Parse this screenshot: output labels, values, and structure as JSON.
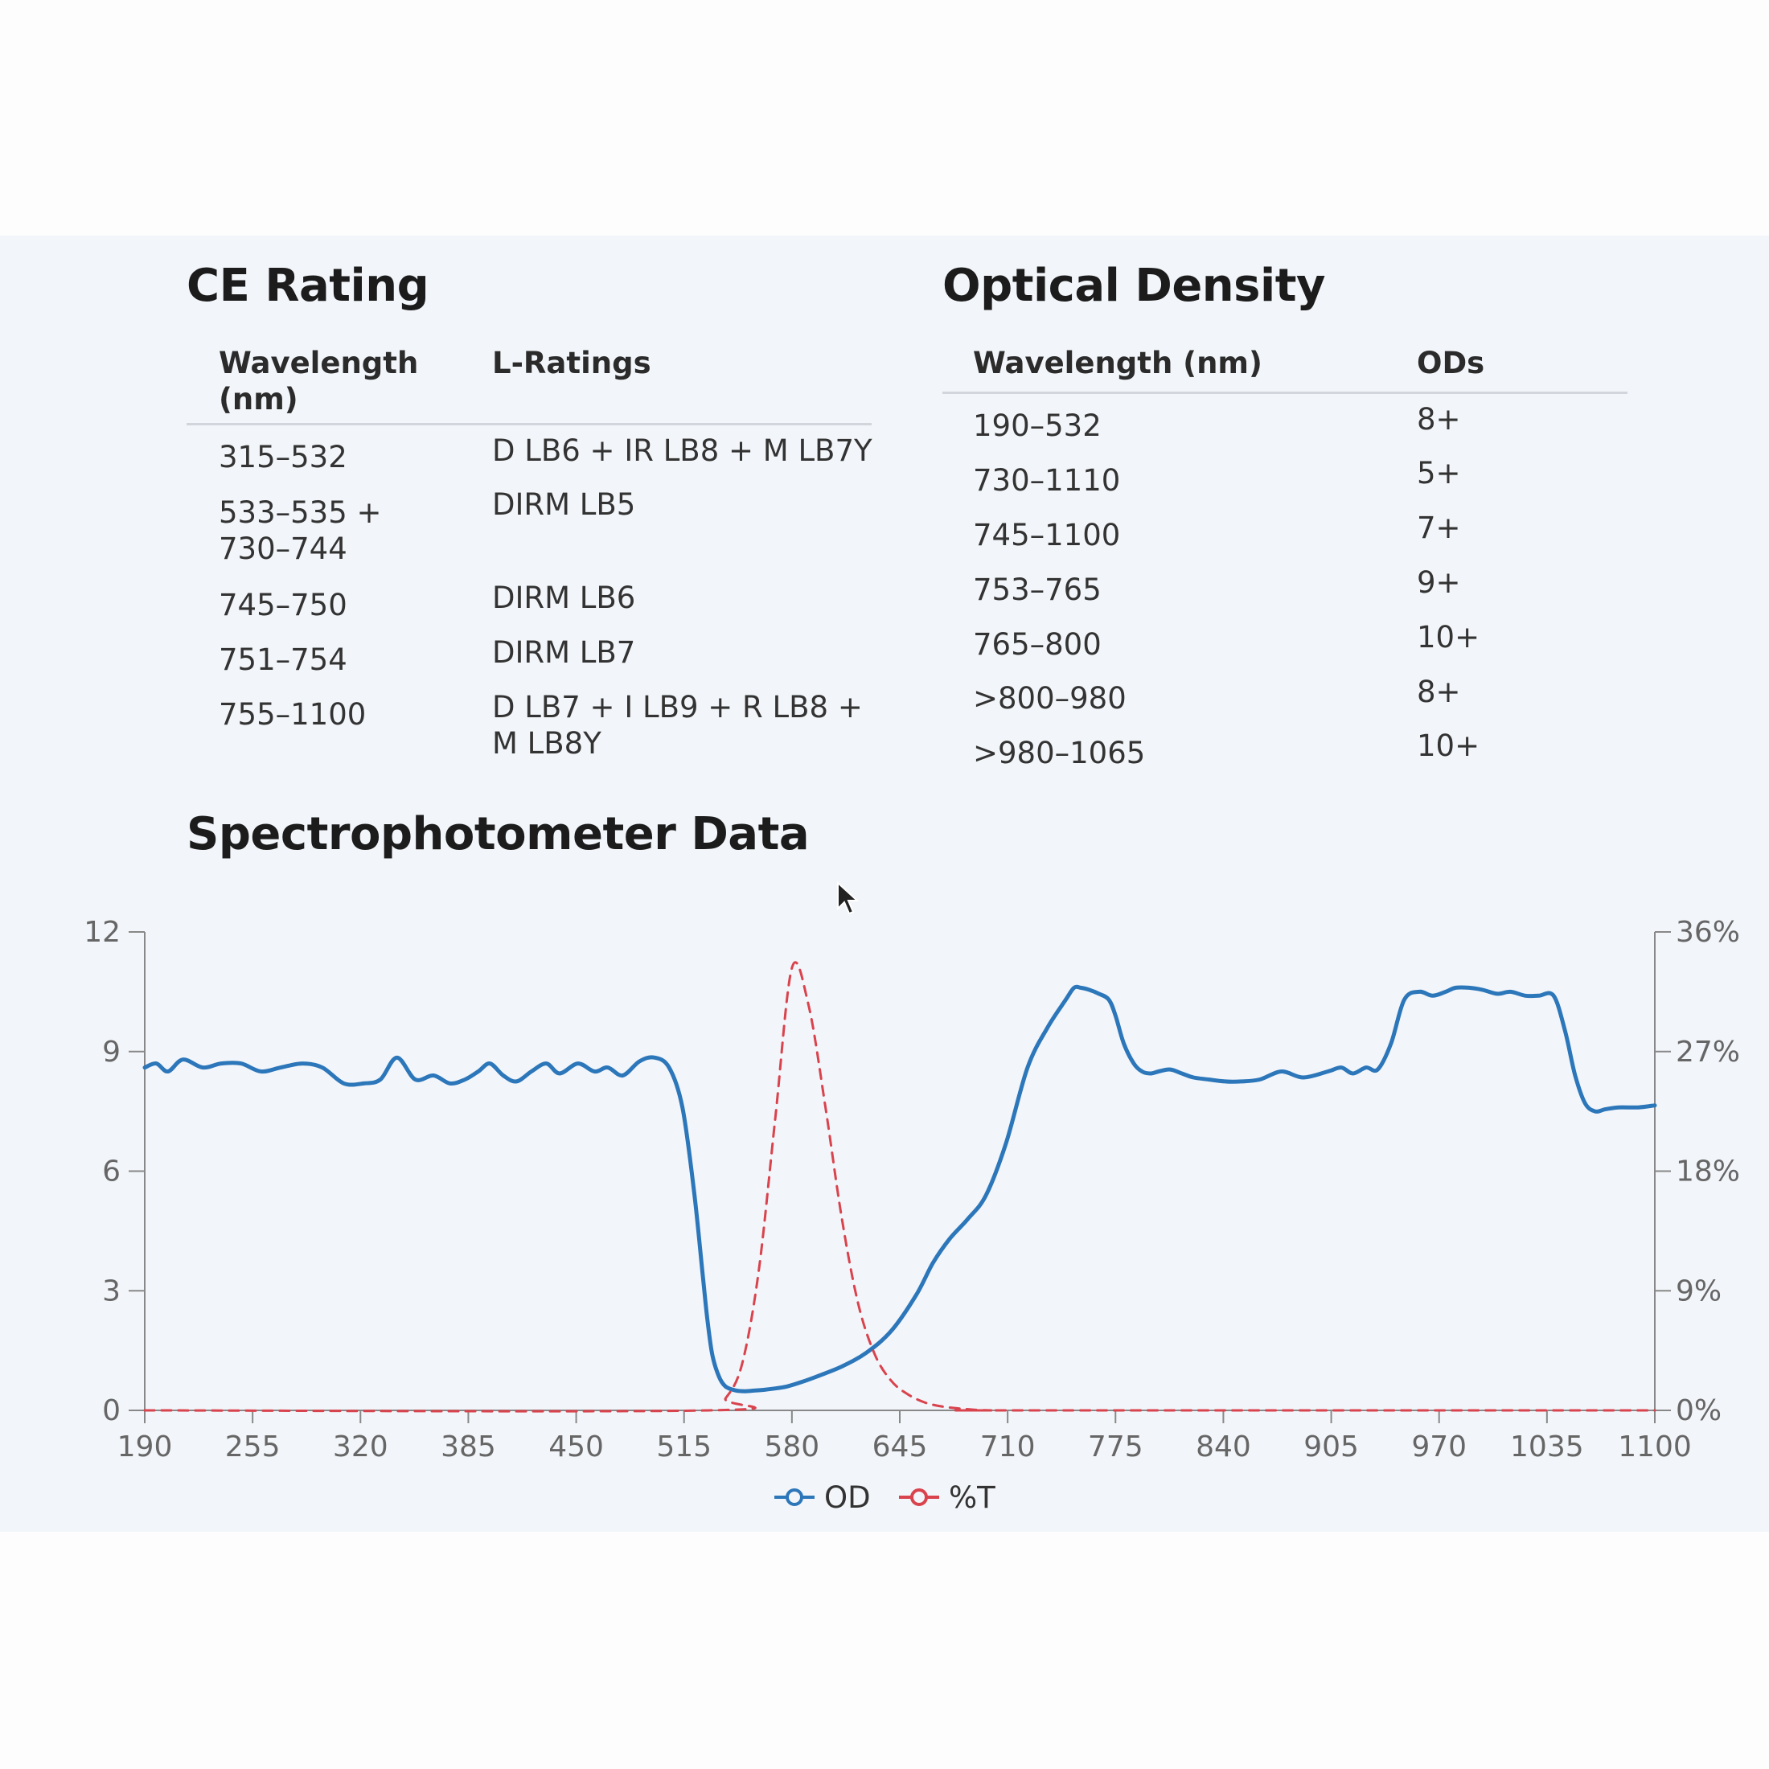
{
  "ce_rating": {
    "title": "CE Rating",
    "headers": {
      "wavelength": [
        "Wavelength",
        "(nm)"
      ],
      "ratings": "L-Ratings"
    },
    "rows": [
      {
        "wavelength": [
          "315–532"
        ],
        "rating": [
          "D LB6 + IR LB8 + M LB7Y"
        ]
      },
      {
        "wavelength": [
          "533–535 +",
          "730–744"
        ],
        "rating": [
          "DIRM LB5"
        ]
      },
      {
        "wavelength": [
          "745–750"
        ],
        "rating": [
          "DIRM LB6"
        ]
      },
      {
        "wavelength": [
          "751–754"
        ],
        "rating": [
          "DIRM LB7"
        ]
      },
      {
        "wavelength": [
          "755–1100"
        ],
        "rating": [
          "D LB7 + I LB9 + R LB8 +",
          "M LB8Y"
        ]
      }
    ]
  },
  "optical_density": {
    "title": "Optical Density",
    "headers": {
      "wavelength": "Wavelength (nm)",
      "ods": "ODs"
    },
    "rows": [
      {
        "wavelength": "190–532",
        "od": "8+"
      },
      {
        "wavelength": "730–1110",
        "od": "5+"
      },
      {
        "wavelength": "745–1100",
        "od": "7+"
      },
      {
        "wavelength": "753–765",
        "od": "9+"
      },
      {
        "wavelength": "765–800",
        "od": "10+"
      },
      {
        "wavelength": ">800–980",
        "od": "8+"
      },
      {
        "wavelength": ">980–1065",
        "od": "10+"
      }
    ]
  },
  "spectro": {
    "title": "Spectrophotometer Data"
  },
  "chart_data": {
    "type": "line",
    "title": "Spectrophotometer Data",
    "x_ticks": [
      190,
      255,
      320,
      385,
      450,
      515,
      580,
      645,
      710,
      775,
      840,
      905,
      970,
      1035,
      1100
    ],
    "xlim": [
      190,
      1100
    ],
    "y_left_ticks": [
      0,
      3,
      6,
      9,
      12
    ],
    "ylim_left": [
      0,
      12
    ],
    "y_right_ticks": [
      "0%",
      "9%",
      "18%",
      "27%",
      "36%"
    ],
    "ylim_right": [
      0,
      36
    ],
    "legend": {
      "placement": "bottom-center"
    },
    "grid": false,
    "series": [
      {
        "name": "OD",
        "axis": "left",
        "color": "#2c76ba",
        "style": "solid",
        "x": [
          190,
          197,
          204,
          213,
          225,
          236,
          248,
          260,
          272,
          285,
          297,
          310,
          322,
          332,
          342,
          353,
          364,
          374,
          383,
          391,
          398,
          406,
          414,
          423,
          432,
          440,
          451,
          461,
          469,
          478,
          488,
          497,
          506,
          514,
          521,
          526,
          529,
          532,
          536,
          540,
          546,
          552,
          558,
          564,
          570,
          577,
          585,
          595,
          610,
          625,
          640,
          655,
          665,
          675,
          686,
          697,
          709,
          722,
          734,
          745,
          750,
          754,
          759,
          765,
          771,
          775,
          780,
          786,
          791,
          796,
          801,
          808,
          815,
          822,
          831,
          841,
          851,
          862,
          875,
          888,
          903,
          911,
          918,
          926,
          933,
          941,
          949,
          958,
          966,
          974,
          980,
          988,
          996,
          1005,
          1013,
          1022,
          1030,
          1039,
          1046,
          1052,
          1058,
          1064,
          1070,
          1078,
          1090,
          1100
        ],
        "y": [
          8.6,
          8.7,
          8.5,
          8.8,
          8.6,
          8.7,
          8.7,
          8.5,
          8.6,
          8.7,
          8.6,
          8.2,
          8.2,
          8.3,
          8.85,
          8.3,
          8.4,
          8.2,
          8.3,
          8.5,
          8.7,
          8.4,
          8.25,
          8.5,
          8.7,
          8.45,
          8.7,
          8.5,
          8.6,
          8.4,
          8.75,
          8.85,
          8.6,
          7.6,
          5.5,
          3.5,
          2.3,
          1.4,
          0.85,
          0.6,
          0.5,
          0.48,
          0.5,
          0.52,
          0.55,
          0.6,
          0.7,
          0.85,
          1.1,
          1.45,
          2.0,
          2.9,
          3.7,
          4.3,
          4.8,
          5.4,
          6.7,
          8.6,
          9.6,
          10.3,
          10.6,
          10.6,
          10.55,
          10.45,
          10.3,
          9.9,
          9.2,
          8.7,
          8.5,
          8.45,
          8.5,
          8.55,
          8.45,
          8.35,
          8.3,
          8.25,
          8.25,
          8.3,
          8.5,
          8.35,
          8.5,
          8.6,
          8.45,
          8.6,
          8.55,
          9.2,
          10.3,
          10.5,
          10.4,
          10.5,
          10.6,
          10.6,
          10.55,
          10.45,
          10.5,
          10.4,
          10.4,
          10.4,
          9.5,
          8.4,
          7.7,
          7.5,
          7.55,
          7.6,
          7.6,
          7.65
        ]
      },
      {
        "name": "%T",
        "axis": "right",
        "color": "#d9434d",
        "style": "dashed",
        "x": [
          190,
          530,
          540,
          550,
          560,
          570,
          580,
          590,
          600,
          610,
          620,
          630,
          640,
          650,
          660,
          670,
          680,
          690,
          700,
          710,
          1100
        ],
        "y": [
          0,
          0,
          0.9,
          3.5,
          10.5,
          22,
          33.3,
          30.5,
          23,
          14.5,
          8,
          4.2,
          2.2,
          1.2,
          0.6,
          0.3,
          0.15,
          0.05,
          0,
          0,
          0
        ]
      }
    ]
  }
}
